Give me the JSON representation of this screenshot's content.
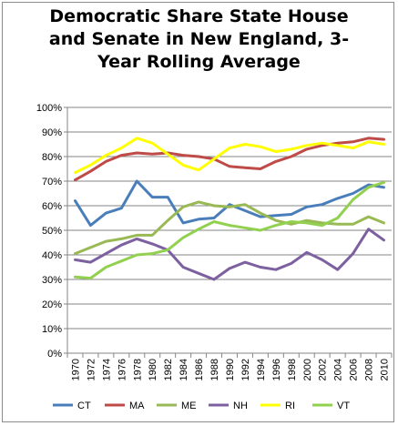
{
  "chart_data": {
    "type": "line",
    "title_lines": [
      "Democratic Share State House",
      "and Senate in New England, 3-",
      "Year Rolling Average"
    ],
    "x": [
      "1970",
      "1972",
      "1974",
      "1976",
      "1978",
      "1980",
      "1982",
      "1984",
      "1986",
      "1988",
      "1990",
      "1992",
      "1994",
      "1996",
      "1998",
      "2000",
      "2002",
      "2004",
      "2006",
      "2008",
      "2010"
    ],
    "ylim": [
      0,
      100
    ],
    "yticks": [
      "0%",
      "10%",
      "20%",
      "30%",
      "40%",
      "50%",
      "60%",
      "70%",
      "80%",
      "90%",
      "100%"
    ],
    "grid": true,
    "legend_position": "bottom",
    "series": [
      {
        "name": "CT",
        "color": "#4a7ebb",
        "values": [
          62,
          52,
          57,
          59,
          70,
          63.5,
          63.5,
          53,
          54.5,
          55,
          60.5,
          58,
          55.5,
          56,
          56.5,
          59.5,
          60.5,
          63,
          65,
          68.5,
          67.5
        ]
      },
      {
        "name": "MA",
        "color": "#be4b48",
        "values": [
          70.5,
          74,
          78,
          80.5,
          81.5,
          81,
          81.5,
          80.5,
          80,
          79,
          76,
          75.5,
          75,
          78,
          80,
          83,
          84.5,
          85.5,
          86,
          87.5,
          87
        ]
      },
      {
        "name": "ME",
        "color": "#98b954",
        "values": [
          40.5,
          43,
          45.5,
          46.5,
          48,
          48,
          54,
          59.5,
          61.5,
          60,
          59.5,
          60.5,
          57,
          54,
          52.5,
          54,
          53,
          52.5,
          52.5,
          55.5,
          53
        ]
      },
      {
        "name": "NH",
        "color": "#7d60a0",
        "values": [
          38,
          37,
          40.5,
          44,
          46.5,
          44.5,
          42,
          35,
          32.5,
          30,
          34.5,
          37,
          35,
          34,
          36.5,
          41,
          38,
          34,
          40.5,
          50.5,
          46
        ]
      },
      {
        "name": "RI",
        "color": "#ffff00",
        "values": [
          73.5,
          76.5,
          80.5,
          83.5,
          87.5,
          85.5,
          81,
          76.5,
          74.5,
          79,
          83.5,
          85,
          84,
          82,
          83,
          84.5,
          85.5,
          84.5,
          83.5,
          86,
          85
        ]
      },
      {
        "name": "VT",
        "color": "#92d050",
        "values": [
          31,
          30.5,
          35,
          37.5,
          40,
          40.5,
          42,
          47,
          50.5,
          53.5,
          52,
          51,
          50,
          52,
          53.5,
          53,
          52,
          55,
          62.5,
          67.5,
          69.5
        ]
      }
    ]
  }
}
